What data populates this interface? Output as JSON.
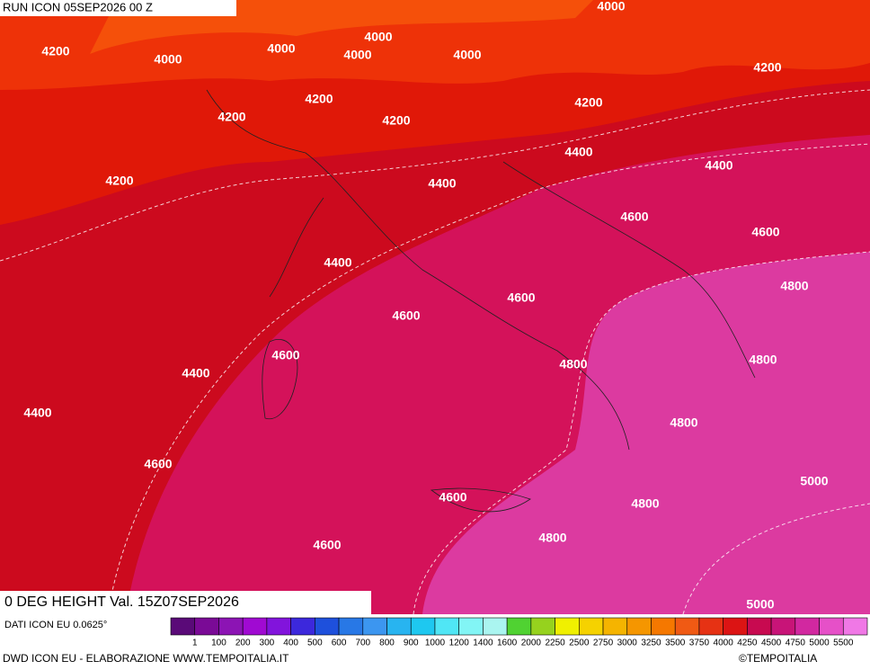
{
  "header": {
    "run": "RUN ICON 05SEP2026 00 Z"
  },
  "map": {
    "title": "0 DEG HEIGHT Val. 15Z07SEP2026",
    "contour_labels": [
      4200,
      4000,
      4000,
      4000,
      4000,
      4000,
      4000,
      4200,
      4200,
      4200,
      4200,
      4200,
      4200,
      4400,
      4400,
      4400,
      4600,
      4600,
      4400,
      4600,
      4800,
      4600,
      4600,
      4800,
      4800,
      4400,
      4400,
      4800,
      4600,
      5000,
      4600,
      4800,
      4600,
      4800,
      5000
    ]
  },
  "footer": {
    "source": "DATI ICON EU 0.0625°",
    "credit": "DWD ICON EU - ELABORAZIONE WWW.TEMPOITALIA.IT",
    "copyright": "©TEMPOITALIA"
  },
  "legend": {
    "labels": [
      1,
      100,
      200,
      300,
      400,
      500,
      600,
      700,
      800,
      900,
      1000,
      1200,
      1400,
      1600,
      2000,
      2250,
      2500,
      2750,
      3000,
      3250,
      3500,
      3750,
      4000,
      4250,
      4500,
      4750,
      5000,
      5500
    ],
    "colors": [
      "#5a0a78",
      "#7a0a96",
      "#8c14b4",
      "#a00ad2",
      "#8214dc",
      "#5a14dc",
      "#3c28dc",
      "#1e50dc",
      "#2878e6",
      "#3c96f0",
      "#28b4f0",
      "#1ec8f0",
      "#50e6f5",
      "#82f5f5",
      "#aaf5f0",
      "#78e678",
      "#50d232",
      "#96d21e",
      "#f0f000",
      "#f5d200",
      "#f5b400",
      "#f59600",
      "#f57800",
      "#f05a14",
      "#e63214",
      "#dc1414",
      "#c80a28",
      "#c80a50",
      "#c81478",
      "#d228a0",
      "#e650c8",
      "#f078e6"
    ]
  }
}
